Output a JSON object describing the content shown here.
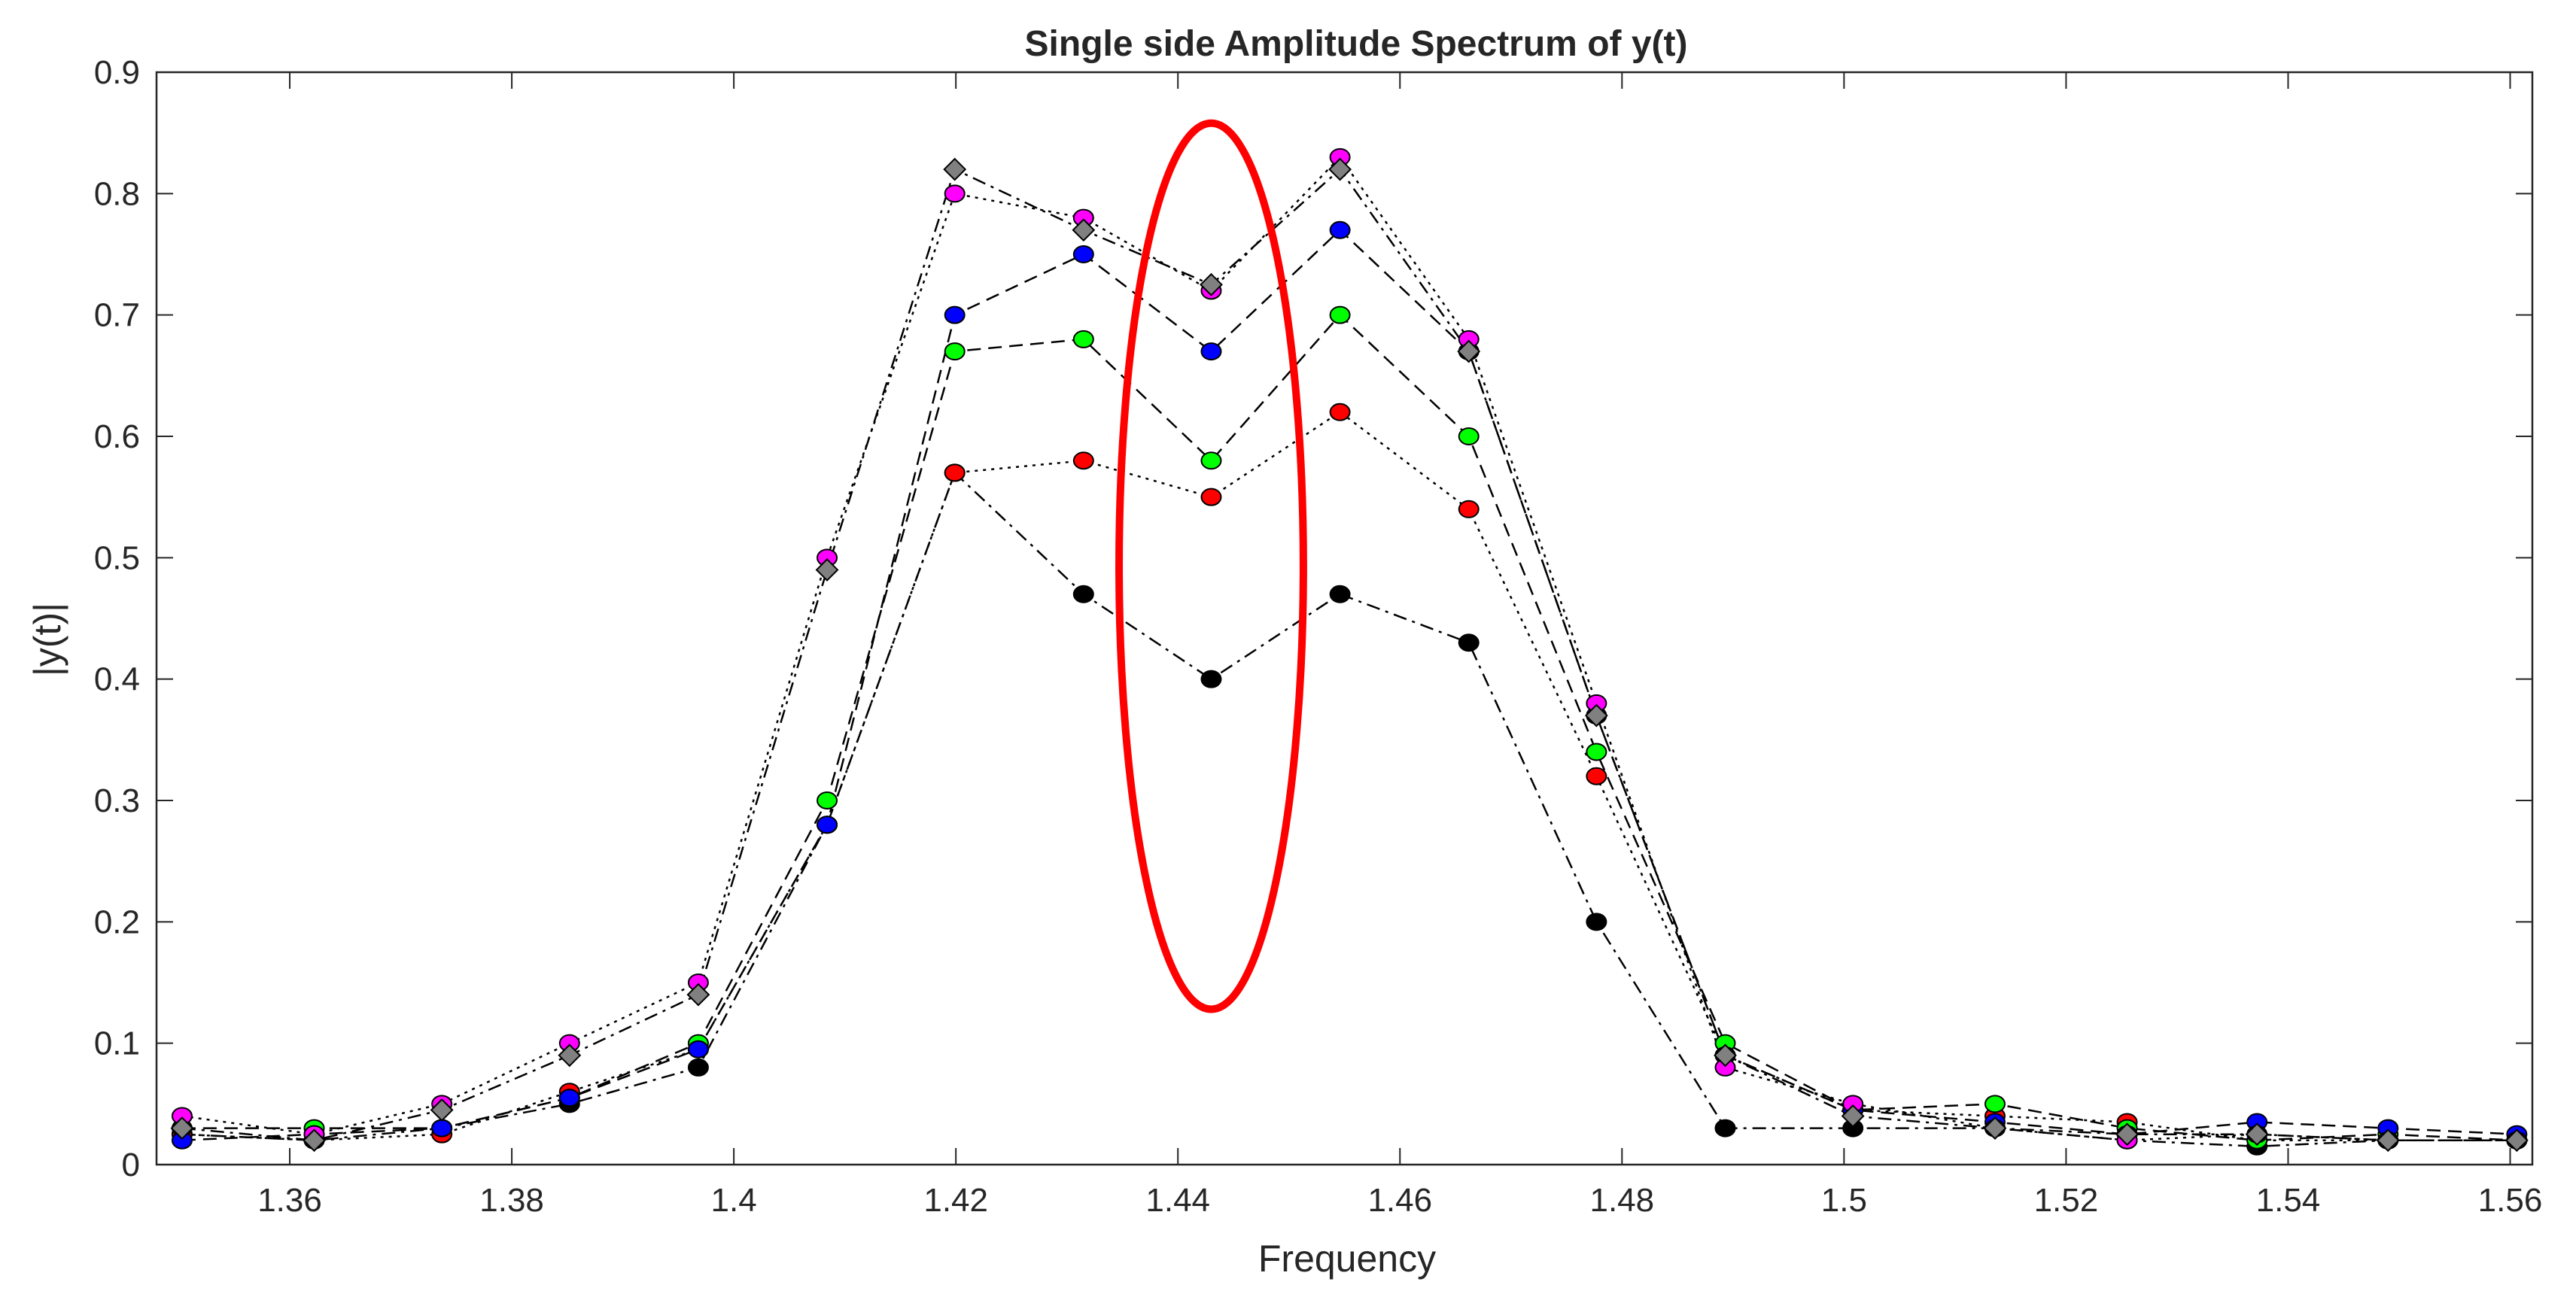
{
  "chart_data": {
    "type": "line",
    "title": "Single side Amplitude Spectrum of y(t)",
    "xlabel": "Frequency",
    "ylabel": "|y(t)|",
    "xlim": [
      1.348,
      1.562
    ],
    "ylim": [
      0,
      0.9
    ],
    "xticks": [
      1.36,
      1.38,
      1.4,
      1.42,
      1.44,
      1.46,
      1.48,
      1.5,
      1.52,
      1.54,
      1.56
    ],
    "xtick_labels": [
      "1.36",
      "1.38",
      "1.4",
      "1.42",
      "1.44",
      "1.46",
      "1.48",
      "1.5",
      "1.52",
      "1.54",
      "1.56"
    ],
    "yticks": [
      0,
      0.1,
      0.2,
      0.3,
      0.4,
      0.5,
      0.6,
      0.7,
      0.8,
      0.9
    ],
    "ytick_labels": [
      "0",
      "0.1",
      "0.2",
      "0.3",
      "0.4",
      "0.5",
      "0.6",
      "0.7",
      "0.8",
      "0.9"
    ],
    "grid": false,
    "x": [
      1.3503,
      1.3622,
      1.3737,
      1.3852,
      1.3968,
      1.4084,
      1.4199,
      1.4315,
      1.443,
      1.4546,
      1.4662,
      1.4777,
      1.4893,
      1.5008,
      1.5136,
      1.5255,
      1.5372,
      1.549,
      1.5606
    ],
    "series": [
      {
        "name": "black",
        "marker": "circle",
        "color": "#000000",
        "dash": "dashdot",
        "values": [
          0.025,
          0.02,
          0.03,
          0.05,
          0.08,
          0.28,
          0.57,
          0.47,
          0.4,
          0.47,
          0.43,
          0.2,
          0.03,
          0.03,
          0.03,
          0.02,
          0.015,
          0.02,
          0.02
        ]
      },
      {
        "name": "red",
        "marker": "circle",
        "color": "#ff0000",
        "dash": "dotted",
        "values": [
          0.025,
          0.02,
          0.025,
          0.06,
          0.095,
          0.28,
          0.57,
          0.58,
          0.55,
          0.62,
          0.54,
          0.32,
          0.09,
          0.045,
          0.04,
          0.035,
          0.02,
          0.02,
          0.02
        ]
      },
      {
        "name": "green",
        "marker": "circle",
        "color": "#00ff00",
        "dash": "dashed",
        "values": [
          0.03,
          0.03,
          0.03,
          0.055,
          0.1,
          0.3,
          0.67,
          0.68,
          0.58,
          0.7,
          0.6,
          0.34,
          0.1,
          0.045,
          0.05,
          0.03,
          0.02,
          0.025,
          0.02
        ]
      },
      {
        "name": "blue",
        "marker": "circle",
        "color": "#0000ff",
        "dash": "dashed",
        "values": [
          0.02,
          0.025,
          0.03,
          0.055,
          0.095,
          0.28,
          0.7,
          0.75,
          0.67,
          0.77,
          0.67,
          0.37,
          0.09,
          0.045,
          0.035,
          0.025,
          0.035,
          0.03,
          0.025
        ]
      },
      {
        "name": "magenta",
        "marker": "circle",
        "color": "#ff00ff",
        "dash": "dotted",
        "values": [
          0.04,
          0.025,
          0.05,
          0.1,
          0.15,
          0.5,
          0.8,
          0.78,
          0.72,
          0.83,
          0.68,
          0.38,
          0.08,
          0.05,
          0.03,
          0.02,
          0.025,
          0.02,
          0.02
        ]
      },
      {
        "name": "gray",
        "marker": "diamond",
        "color": "#808080",
        "dash": "dashdot",
        "values": [
          0.03,
          0.02,
          0.045,
          0.09,
          0.14,
          0.49,
          0.82,
          0.77,
          0.725,
          0.82,
          0.67,
          0.37,
          0.09,
          0.04,
          0.03,
          0.025,
          0.025,
          0.02,
          0.02
        ]
      }
    ],
    "annotations": [
      {
        "type": "ellipse",
        "color": "#ff0000",
        "cx": 1.443,
        "cy": 0.493,
        "rx": 0.0083,
        "ry": 0.365
      }
    ]
  }
}
